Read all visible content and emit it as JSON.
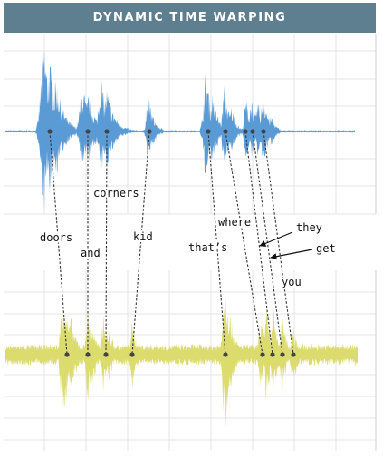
{
  "header": {
    "title": "DYNAMIC TIME WARPING"
  },
  "colors": {
    "top_wave": "#5b9bd5",
    "bottom_wave": "#dbdb6e",
    "grid": "#e4e4e4",
    "grid_frame": "#cccccc",
    "connector": "#333333",
    "dot": "#444444",
    "title_bg": "#5d7f8f"
  },
  "words": [
    {
      "id": "doors",
      "label": "doors"
    },
    {
      "id": "and",
      "label": "and"
    },
    {
      "id": "corners",
      "label": "corners"
    },
    {
      "id": "kid",
      "label": "kid"
    },
    {
      "id": "thats",
      "label": "that’s"
    },
    {
      "id": "where",
      "label": "where"
    },
    {
      "id": "they",
      "label": "they"
    },
    {
      "id": "get",
      "label": "get"
    },
    {
      "id": "you",
      "label": "you"
    }
  ]
}
